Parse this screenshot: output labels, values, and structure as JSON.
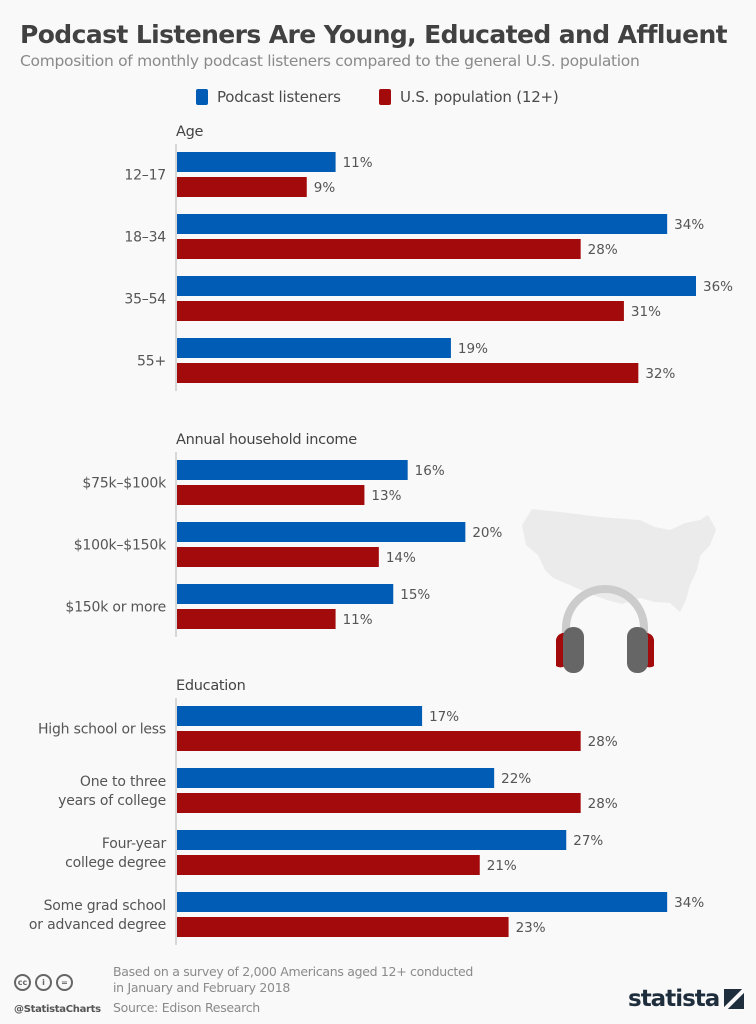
{
  "header": {
    "title": "Podcast Listeners Are Young, Educated and Affluent",
    "subtitle": "Composition of monthly podcast listeners compared to the general U.S. population"
  },
  "colors": {
    "podcast": "#005cb4",
    "population": "#a30a0b",
    "text": "#4a4a4a",
    "axis": "#cccccc"
  },
  "chart_data": {
    "type": "bar",
    "orientation": "horizontal",
    "title": "Podcast Listeners Are Young, Educated and Affluent",
    "subtitle": "Composition of monthly podcast listeners compared to the general U.S. population",
    "unit": "%",
    "legend_position": "top-center",
    "xlim": [
      0,
      36
    ],
    "grid": false,
    "series_names": [
      "Podcast listeners",
      "U.S. population (12+)"
    ],
    "groups": [
      {
        "name": "Age",
        "categories": [
          "12–17",
          "18–34",
          "35–54",
          "55+"
        ],
        "series": [
          {
            "name": "Podcast listeners",
            "values": [
              11,
              34,
              36,
              19
            ]
          },
          {
            "name": "U.S. population (12+)",
            "values": [
              9,
              28,
              31,
              32
            ]
          }
        ]
      },
      {
        "name": "Annual household income",
        "categories": [
          "$75k–$100k",
          "$100k–$150k",
          "$150k or more"
        ],
        "series": [
          {
            "name": "Podcast listeners",
            "values": [
              16,
              20,
              15
            ]
          },
          {
            "name": "U.S. population (12+)",
            "values": [
              13,
              14,
              11
            ]
          }
        ]
      },
      {
        "name": "Education",
        "categories": [
          "High school or less",
          "One to three\nyears of college",
          "Four-year\ncollege degree",
          "Some grad school\nor advanced degree"
        ],
        "series": [
          {
            "name": "Podcast listeners",
            "values": [
              17,
              22,
              27,
              34
            ]
          },
          {
            "name": "U.S. population (12+)",
            "values": [
              28,
              28,
              21,
              23
            ]
          }
        ]
      }
    ]
  },
  "footer": {
    "note_line1": "Based on a survey of 2,000 Americans aged 12+ conducted",
    "note_line2": "in January and February 2018",
    "source": "Source: Edison Research",
    "handle": "@StatistaCharts",
    "license_icons": [
      "cc",
      "i",
      "="
    ],
    "logo": "statista"
  }
}
